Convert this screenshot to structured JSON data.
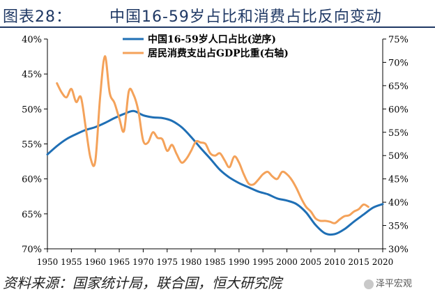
{
  "header": {
    "figure_label": "图表28：",
    "title": "中国16-59岁占比和消费占比反向变动"
  },
  "source": "资料来源：国家统计局，联合国，恒大研究院",
  "watermark": "泽平宏观",
  "colors": {
    "series1": "#1f6fb5",
    "series2": "#f4a25a",
    "title": "#1f3864"
  },
  "chart_data": {
    "type": "line",
    "xlabel": "",
    "x_ticks": [
      1950,
      1955,
      1960,
      1965,
      1970,
      1975,
      1980,
      1985,
      1990,
      1995,
      2000,
      2005,
      2010,
      2015,
      2020
    ],
    "x_range": [
      1950,
      2020
    ],
    "left_axis": {
      "inverted": true,
      "range": [
        40,
        70
      ],
      "ticks": [
        40,
        45,
        50,
        55,
        60,
        65,
        70
      ],
      "tick_labels": [
        "40%",
        "45%",
        "50%",
        "55%",
        "60%",
        "65%",
        "70%"
      ]
    },
    "right_axis": {
      "range": [
        30,
        75
      ],
      "ticks": [
        30,
        35,
        40,
        45,
        50,
        55,
        60,
        65,
        70,
        75
      ],
      "tick_labels": [
        "30%",
        "35%",
        "40%",
        "45%",
        "50%",
        "55%",
        "60%",
        "65%",
        "70%",
        "75%"
      ]
    },
    "legend_position": "top-center",
    "series": [
      {
        "name": "中国16-59岁人口占比(逆序)",
        "axis": "left",
        "x": [
          1950,
          1952,
          1954,
          1956,
          1958,
          1960,
          1962,
          1964,
          1966,
          1968,
          1970,
          1972,
          1974,
          1976,
          1978,
          1980,
          1982,
          1984,
          1986,
          1988,
          1990,
          1992,
          1994,
          1996,
          1998,
          2000,
          2002,
          2004,
          2006,
          2008,
          2010,
          2012,
          2014,
          2016,
          2018,
          2020
        ],
        "y": [
          56.5,
          55.3,
          54.3,
          53.6,
          53.0,
          52.6,
          52.0,
          51.3,
          50.7,
          50.3,
          50.9,
          51.2,
          51.3,
          51.7,
          52.6,
          54.0,
          55.6,
          57.1,
          58.7,
          59.8,
          60.6,
          61.2,
          61.8,
          62.2,
          62.8,
          63.1,
          63.6,
          64.8,
          66.6,
          67.8,
          67.9,
          67.2,
          66.1,
          65.1,
          64.1,
          63.6
        ]
      },
      {
        "name": "居民消费支出占GDP比重(右轴)",
        "axis": "right",
        "x": [
          1952,
          1953,
          1954,
          1955,
          1956,
          1957,
          1958,
          1959,
          1960,
          1961,
          1962,
          1963,
          1964,
          1965,
          1966,
          1967,
          1968,
          1969,
          1970,
          1971,
          1972,
          1973,
          1974,
          1975,
          1976,
          1977,
          1978,
          1979,
          1980,
          1981,
          1982,
          1983,
          1984,
          1985,
          1986,
          1987,
          1988,
          1989,
          1990,
          1991,
          1992,
          1993,
          1994,
          1995,
          1996,
          1997,
          1998,
          1999,
          2000,
          2001,
          2002,
          2003,
          2004,
          2005,
          2006,
          2007,
          2008,
          2009,
          2010,
          2011,
          2012,
          2013,
          2014,
          2015,
          2016,
          2017
        ],
        "y": [
          65.5,
          63.5,
          62.5,
          64.3,
          61.5,
          62.5,
          56.0,
          49.5,
          48.8,
          62.5,
          71.3,
          63.5,
          61.3,
          58.0,
          55.3,
          63.8,
          63.0,
          59.5,
          53.2,
          52.8,
          55.0,
          53.8,
          53.5,
          51.0,
          52.3,
          50.3,
          48.5,
          49.3,
          51.0,
          53.0,
          52.8,
          52.5,
          50.5,
          50.0,
          50.5,
          49.0,
          47.5,
          49.8,
          48.5,
          46.0,
          44.0,
          43.8,
          44.8,
          46.0,
          46.5,
          45.5,
          45.0,
          46.5,
          46.0,
          44.8,
          43.0,
          40.8,
          39.0,
          38.0,
          36.5,
          36.0,
          36.0,
          35.8,
          35.5,
          36.3,
          37.0,
          37.2,
          38.0,
          38.5,
          39.5,
          39.0
        ]
      }
    ]
  }
}
